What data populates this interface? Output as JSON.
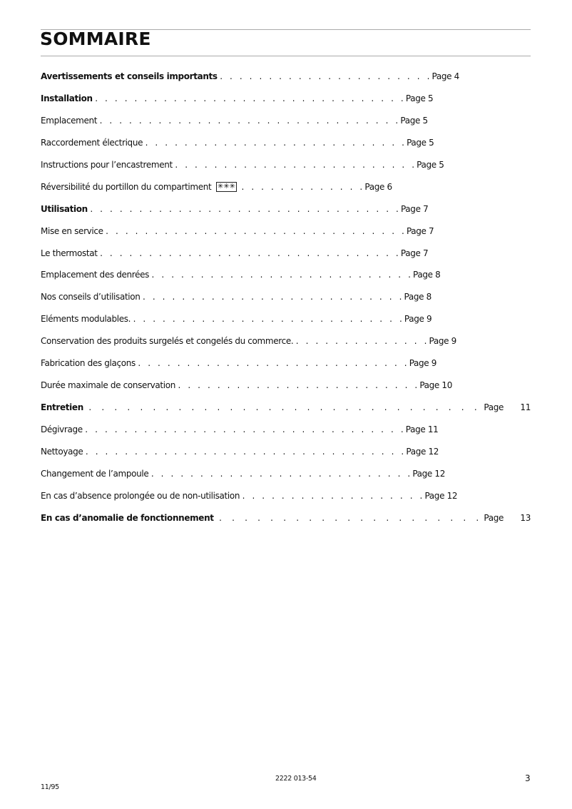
{
  "title": "SOMMAIRE",
  "entries": [
    {
      "text": "Avertissements et conseils importants",
      "dots": ". . . . . . . . . . . . . . . . . . . . . .",
      "page": "Page 4",
      "bold": true
    },
    {
      "text": "Installation",
      "dots": ". . . . . . . . . . . . . . . . . . . . . . . . . . . . . . . .",
      "page": "Page 5",
      "bold": true
    },
    {
      "text": "Emplacement",
      "dots": ". . . . . . . . . . . . . . . . . . . . . . . . . . . . . . .",
      "page": "Page 5"
    },
    {
      "text": "Raccordement électrique",
      "dots": ". . . . . . . . . . . . . . . . . . . . . . . . . . .",
      "page": "Page 5"
    },
    {
      "text": "Instructions pour l’encastrement",
      "dots": ". . . . . . . . . . . . . . . . . . . . . . . . .",
      "page": "Page 5"
    },
    {
      "text": "Réversibilité du portillon du compartiment",
      "symbol": "✳✳✳",
      "dots": ". . . . . . . . . . . . .",
      "page": "Page 6"
    },
    {
      "text": "Utilisation",
      "dots": ". . . . . . . . . . . . . . . . . . . . . . . . . . . . . . . .",
      "page": "Page 7",
      "bold": true
    },
    {
      "text": "Mise en service",
      "dots": ". . . . . . . . . . . . . . . . . . . . . . . . . . . . . . .",
      "page": "Page 7"
    },
    {
      "text": "Le thermostat",
      "dots": ". . . . . . . . . . . . . . . . . . . . . . . . . . . . . . .",
      "page": "Page 7"
    },
    {
      "text": "Emplacement des denrées",
      "dots": ". . . . . . . . . . . . . . . . . . . . . . . . . . .",
      "page": "Page 8"
    },
    {
      "text": "Nos conseils d’utilisation",
      "dots": ". . . . . . . . . . . . . . . . . . . . . . . . . . .",
      "page": "Page 8"
    },
    {
      "text": "Eléments modulables.",
      "dots": ". . . . . . . . . . . . . . . . . . . . . . . . . . . .",
      "page": "Page 9"
    },
    {
      "text": "Conservation des produits surgelés et congelés du commerce.",
      "dots": ". . . . . . . . . . . . . .",
      "page": "Page 9"
    },
    {
      "text": "Fabrication des glaçons",
      "dots": ". . . . . . . . . . . . . . . . . . . . . . . . . . . .",
      "page": "Page 9"
    },
    {
      "text": "Durée maximale de conservation",
      "dots": ". . . . . . . . . . . . . . . . . . . . . . . . .",
      "page": "Page 10"
    },
    {
      "text": "Entretien",
      "dots": "...............................",
      "page": "Page",
      "num": "11",
      "bold": true,
      "spread": true
    },
    {
      "text": "Dégivrage",
      "dots": ". . . . . . . . . . . . . . . . . . . . . . . . . . . . . . . . .",
      "page": "Page 11"
    },
    {
      "text": "Nettoyage",
      "dots": ". . . . . . . . . . . . . . . . . . . . . . . . . . . . . . . . .",
      "page": "Page 12"
    },
    {
      "text": "Changement de l’ampoule ",
      "dots": ". . . . . . . . . . . . . . . . . . . . . . . . . . .",
      "page": "Page 12"
    },
    {
      "text": "En cas d’absence prolongée ou de non-utilisation",
      "dots": ". . . . . . . . . . . . . . . . . . .",
      "page": "Page 12"
    },
    {
      "text": "En cas d’anomalie de fonctionnement",
      "dots": ".....................",
      "page": "Page",
      "num": "13",
      "bold": true,
      "spread": true
    }
  ],
  "footer": {
    "code": "2222 013-54",
    "page_number": "3",
    "date": "11/95"
  }
}
